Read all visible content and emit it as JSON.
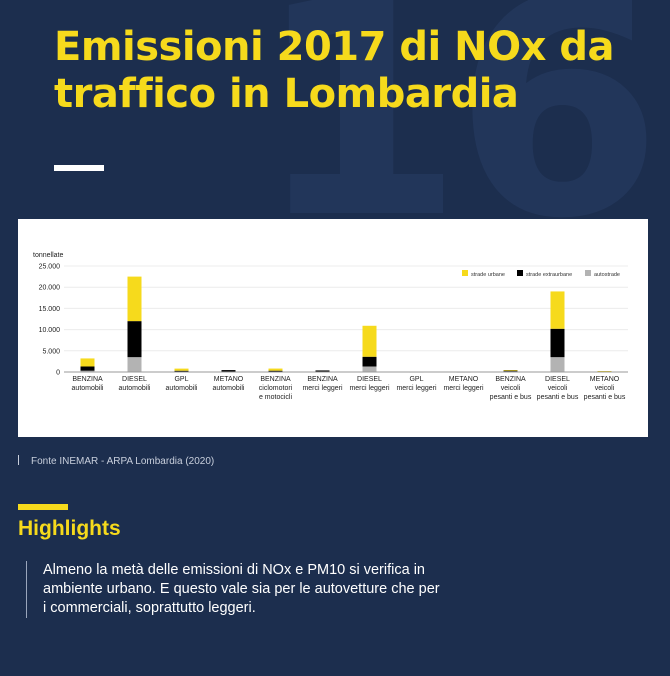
{
  "page": {
    "background_number": "16",
    "title": "Emissioni 2017 di NOx da traffico in Lombardia",
    "source": "Fonte INEMAR - ARPA Lombardia (2020)",
    "highlights_title": "Highlights",
    "highlights_text": "Almeno la metà delle emissioni di NOx e PM10 si verifica in ambiente urbano. E questo vale sia per le autovetture che per i commerciali, soprattutto leggeri."
  },
  "colors": {
    "background": "#1c2e4e",
    "accent_yellow": "#f6da1c",
    "strade_urbane": "#f6da1c",
    "strade_extraurbane": "#000000",
    "autostrade": "#b3b3b3"
  },
  "chart_data": {
    "type": "bar",
    "stacked": true,
    "title": "",
    "ylabel": "tonnellate",
    "xlabel": "",
    "ylim": [
      0,
      25000
    ],
    "yticks": [
      0,
      5000,
      10000,
      15000,
      20000,
      25000
    ],
    "ytick_labels": [
      "0",
      "5.000",
      "10.000",
      "15.000",
      "20.000",
      "25.000"
    ],
    "grid": true,
    "legend_position": "top-right",
    "categories": [
      [
        "BENZINA",
        "automobili"
      ],
      [
        "DIESEL",
        "automobili"
      ],
      [
        "GPL",
        "automobili"
      ],
      [
        "METANO",
        "automobili"
      ],
      [
        "BENZINA",
        "ciclomotori",
        "e motocicli"
      ],
      [
        "BENZINA",
        "merci leggeri"
      ],
      [
        "DIESEL",
        "merci leggeri"
      ],
      [
        "GPL",
        "merci leggeri"
      ],
      [
        "METANO",
        "merci leggeri"
      ],
      [
        "BENZINA",
        "veicoli",
        "pesanti e bus"
      ],
      [
        "DIESEL",
        "veicoli",
        "pesanti e bus"
      ],
      [
        "METANO",
        "veicoli",
        "pesanti e bus"
      ]
    ],
    "series": [
      {
        "name": "autostrade",
        "color": "#b3b3b3",
        "values": [
          300,
          3500,
          80,
          100,
          80,
          100,
          1300,
          10,
          10,
          150,
          3500,
          70
        ]
      },
      {
        "name": "strade extraurbane",
        "color": "#000000",
        "values": [
          1000,
          8500,
          220,
          350,
          230,
          270,
          2300,
          20,
          10,
          250,
          6700,
          140
        ]
      },
      {
        "name": "strade urbane",
        "color": "#f6da1c",
        "values": [
          1900,
          10500,
          500,
          0,
          500,
          0,
          7300,
          10,
          10,
          50,
          8800,
          10
        ]
      }
    ]
  }
}
